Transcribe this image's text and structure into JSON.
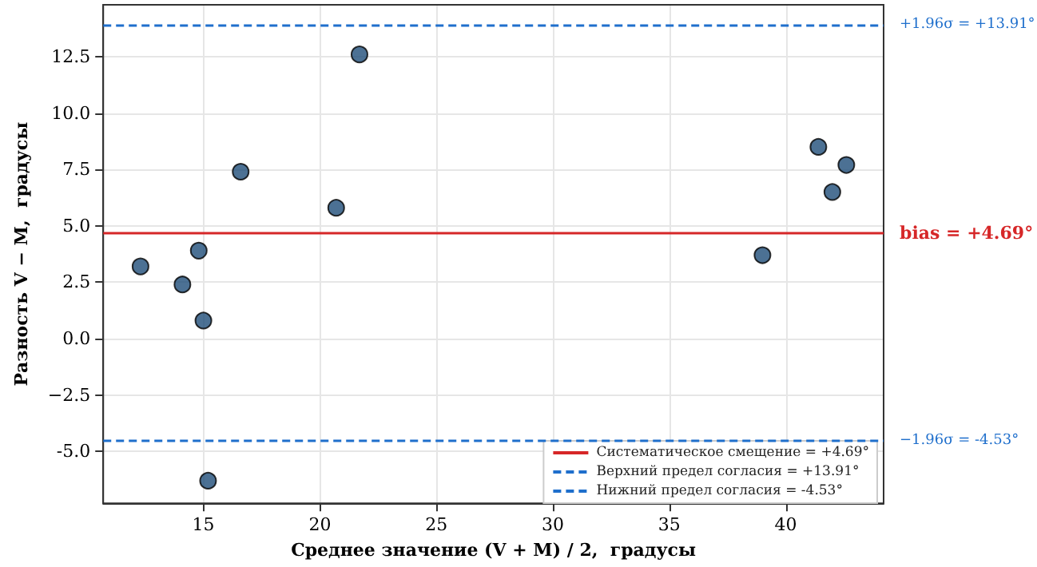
{
  "chart_data": {
    "type": "scatter",
    "xlabel": "Среднее значение (V + M) / 2,  градусы",
    "ylabel": "Разность V − M,  градусы",
    "x": [
      12.3,
      14.1,
      14.8,
      15.0,
      15.2,
      16.6,
      20.7,
      21.7,
      39.0,
      41.4,
      42.0,
      42.6
    ],
    "series": [
      {
        "color": "#1f4e79",
        "values": [
          3.2,
          2.4,
          3.9,
          0.8,
          -6.3,
          7.4,
          5.8,
          12.6,
          3.7,
          8.5,
          6.5,
          7.7
        ]
      }
    ],
    "xlim": [
      10.7,
      44.2
    ],
    "xticks": [
      15,
      20,
      25,
      30,
      35,
      40
    ],
    "ylim": [
      -7.3,
      14.8
    ],
    "yticks": [
      {
        "value": -5,
        "label": "-5.0"
      },
      {
        "value": -2.5,
        "label": "−2.5"
      },
      {
        "value": 0,
        "label": "0.0"
      },
      2.5,
      {
        "value": 5,
        "label": "5.0"
      },
      7.5,
      {
        "value": 10,
        "label": "10.0"
      },
      12.5
    ],
    "ref_lines": [
      {
        "axis": "y",
        "value": 4.69,
        "label": "Систематическое смещение = +4.69°",
        "color": "#d62728",
        "line_style": "solid"
      },
      {
        "axis": "y",
        "value": 13.91,
        "label": "Верхний предел согласия = +13.91°",
        "color": "#1f6fcc",
        "line_style": "dashed"
      },
      {
        "axis": "y",
        "value": -4.53,
        "label": "Нижний предел согласия = -4.53°",
        "color": "#1f6fcc",
        "line_style": "dashed"
      }
    ],
    "annotations": [
      "bias = +4.69°",
      "+1.96σ = +13.91°",
      "−1.96σ = -4.53°"
    ],
    "grid": true,
    "legend": "bottom right",
    "marker": "circle"
  }
}
